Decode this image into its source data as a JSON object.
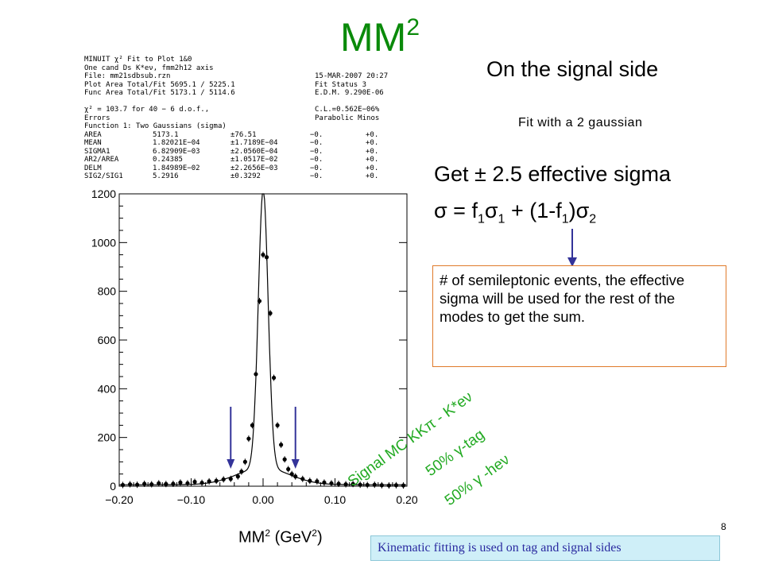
{
  "slide": {
    "title": "MM",
    "title_sup": "2",
    "signal_side": "On the signal side",
    "fit_note": "Fit with a 2 gaussian",
    "get_sigma": "Get ± 2.5 effective sigma",
    "formula": {
      "sigma": "σ",
      "eq": " = f",
      "sub1": "1",
      "sigma2": "σ",
      "sub2": "1",
      "mid": " + (1-f",
      "sub3": "1",
      "close": ")",
      "sigma3": "σ",
      "sub4": "2"
    },
    "note_box": "# of semileptonic events, the effective sigma will be used for the rest of the modes to get the sum.",
    "signal_mc": "Signal MC KKπ - K*eν",
    "tag_label": "50%  γ-tag",
    "hev_label": "50% γ -heν",
    "xaxis_caption": "MM",
    "xaxis_sup1": "2",
    "xaxis_unit": " (GeV",
    "xaxis_sup2": "2",
    "xaxis_close": ")",
    "kinematic": "Kinematic fitting is used on tag and signal sides",
    "page_number": "8",
    "colors": {
      "title": "#0a8a0a",
      "annotation": "#22aa22",
      "arrow": "#333399",
      "box_border": "#e07a2a",
      "kin_bg": "#cfeff8"
    }
  },
  "fit_panel": {
    "rows": [
      [
        "MINUIT χ² Fit to Plot    1&0",
        ""
      ],
      [
        "One cand Ds K*eν, fmm2h12 axis",
        ""
      ],
      [
        "File: mm21sdbsub.rzn",
        "15-MAR-2007 20:27"
      ],
      [
        "Plot Area Total/Fit  5695.1 / 5225.1",
        "Fit Status  3"
      ],
      [
        "Func Area Total/Fit  5173.1 / 5114.6",
        "E.D.M. 9.290E-06"
      ],
      [
        "",
        ""
      ],
      [
        "χ² =  103.7 for 40 −  6 d.o.f.,",
        "C.L.=0.562E−06%"
      ],
      [
        "Errors",
        "Parabolic        Minos"
      ],
      [
        "Function  1: Two Gaussians (sigma)",
        ""
      ]
    ],
    "params": [
      [
        "AREA",
        "5173.1",
        "±76.51",
        "−0.",
        "+0."
      ],
      [
        "MEAN",
        "1.82021E−04",
        "±1.7189E−04",
        "−0.",
        "+0."
      ],
      [
        "SIGMA1",
        "6.82909E−03",
        "±2.0560E−04",
        "−0.",
        "+0."
      ],
      [
        "AR2/AREA",
        "0.24385",
        "±1.0517E−02",
        "−0.",
        "+0."
      ],
      [
        "DELM",
        "1.84989E−02",
        "±2.2656E−03",
        "−0.",
        "+0."
      ],
      [
        "SIG2/SIG1",
        "5.2916",
        "±0.3292",
        "−0.",
        "+0."
      ]
    ]
  },
  "chart_data": {
    "type": "scatter",
    "title": "",
    "xlabel": "MM² (GeV²)",
    "ylabel": "",
    "xlim": [
      -0.2,
      0.2
    ],
    "ylim": [
      0,
      1200
    ],
    "xticks": [
      -0.2,
      -0.1,
      0.0,
      0.1,
      0.2
    ],
    "xtick_labels": [
      "−0.20",
      "−0.10",
      "0.00",
      "0.10",
      "0.20"
    ],
    "yticks": [
      0,
      200,
      400,
      600,
      800,
      1000,
      1200
    ],
    "ytick_labels": [
      "0",
      "200",
      "400",
      "600",
      "800",
      "1000",
      "1200"
    ],
    "series": [
      {
        "x": [
          -0.195,
          -0.185,
          -0.175,
          -0.165,
          -0.155,
          -0.145,
          -0.135,
          -0.125,
          -0.115,
          -0.105,
          -0.095,
          -0.085,
          -0.075,
          -0.065,
          -0.055,
          -0.045,
          -0.035,
          -0.03,
          -0.025,
          -0.02,
          -0.015,
          -0.01,
          -0.005,
          0.0,
          0.005,
          0.01,
          0.015,
          0.02,
          0.025,
          0.03,
          0.035,
          0.04,
          0.045,
          0.055,
          0.065,
          0.075,
          0.085,
          0.095,
          0.105,
          0.115,
          0.125,
          0.135,
          0.145,
          0.155,
          0.165,
          0.175,
          0.185,
          0.195
        ],
        "values": [
          5,
          8,
          6,
          10,
          8,
          12,
          9,
          10,
          15,
          12,
          18,
          14,
          20,
          22,
          28,
          30,
          40,
          60,
          100,
          195,
          250,
          460,
          760,
          950,
          940,
          710,
          445,
          250,
          170,
          110,
          70,
          50,
          40,
          30,
          22,
          20,
          15,
          12,
          10,
          8,
          9,
          6,
          5,
          6,
          4,
          3,
          4,
          3
        ]
      }
    ],
    "fit_curve": "double gaussian",
    "markers_x": [
      -0.045,
      0.045
    ],
    "grid": false
  }
}
